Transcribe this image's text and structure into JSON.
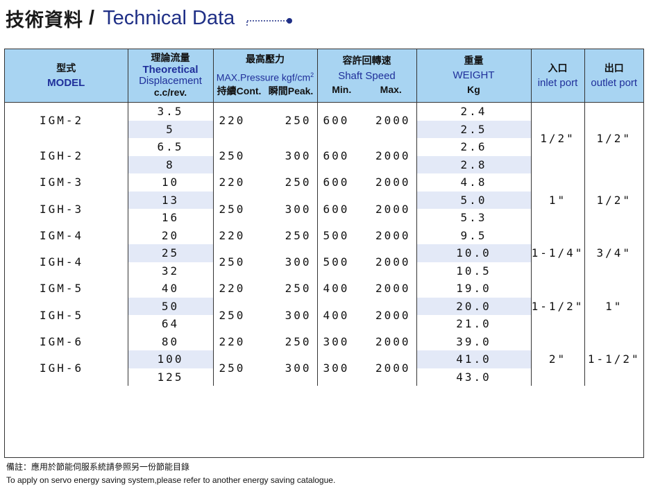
{
  "heading": {
    "zh": "技術資料",
    "slash": "/",
    "en": "Technical Data"
  },
  "headers": {
    "model_zh": "型式",
    "model_en": "MODEL",
    "disp_zh": "理論流量",
    "disp_en1": "Theoretical",
    "disp_en2": "Displacement",
    "disp_unit": "c.c/rev.",
    "press_zh": "最高壓力",
    "press_en": "MAX.Pressure kgf/cm",
    "press_sup": "2",
    "press_cont": "持續Cont.",
    "press_peak": "瞬間Peak.",
    "speed_zh": "容許回轉速",
    "speed_en": "Shaft Speed",
    "speed_min": "Min.",
    "speed_max": "Max.",
    "weight_zh": "重量",
    "weight_en": "WEIGHT",
    "weight_unit": "Kg",
    "inlet_zh": "入口",
    "inlet_en": "inlet port",
    "outlet_zh": "出口",
    "outlet_en": "outlet port"
  },
  "groups": [
    {
      "models": [
        {
          "name": "IGM-2",
          "cont": "220",
          "peak": "250",
          "min": "600",
          "max": "2000"
        },
        {
          "name": "IGH-2",
          "cont": "250",
          "peak": "300",
          "min": "600",
          "max": "2000"
        }
      ],
      "disp": [
        "3.5",
        "5",
        "6.5",
        "8"
      ],
      "weight": [
        "2.4",
        "2.5",
        "2.6",
        "2.8"
      ],
      "inlet": "1/2\"",
      "outlet": "1/2\""
    },
    {
      "models": [
        {
          "name": "IGM-3",
          "cont": "220",
          "peak": "250",
          "min": "600",
          "max": "2000"
        },
        {
          "name": "IGH-3",
          "cont": "250",
          "peak": "300",
          "min": "600",
          "max": "2000"
        }
      ],
      "disp": [
        "10",
        "13",
        "16"
      ],
      "weight": [
        "4.8",
        "5.0",
        "5.3"
      ],
      "inlet": "1\"",
      "outlet": "1/2\""
    },
    {
      "models": [
        {
          "name": "IGM-4",
          "cont": "220",
          "peak": "250",
          "min": "500",
          "max": "2000"
        },
        {
          "name": "IGH-4",
          "cont": "250",
          "peak": "300",
          "min": "500",
          "max": "2000"
        }
      ],
      "disp": [
        "20",
        "25",
        "32"
      ],
      "weight": [
        "9.5",
        "10.0",
        "10.5"
      ],
      "inlet": "1-1/4\"",
      "outlet": "3/4\""
    },
    {
      "models": [
        {
          "name": "IGM-5",
          "cont": "220",
          "peak": "250",
          "min": "400",
          "max": "2000"
        },
        {
          "name": "IGH-5",
          "cont": "250",
          "peak": "300",
          "min": "400",
          "max": "2000"
        }
      ],
      "disp": [
        "40",
        "50",
        "64"
      ],
      "weight": [
        "19.0",
        "20.0",
        "21.0"
      ],
      "inlet": "1-1/2\"",
      "outlet": "1\""
    },
    {
      "models": [
        {
          "name": "IGM-6",
          "cont": "220",
          "peak": "250",
          "min": "300",
          "max": "2000"
        },
        {
          "name": "IGH-6",
          "cont": "250",
          "peak": "300",
          "min": "300",
          "max": "2000"
        }
      ],
      "disp": [
        "80",
        "100",
        "125"
      ],
      "weight": [
        "39.0",
        "41.0",
        "43.0"
      ],
      "inlet": "2\"",
      "outlet": "1-1/2\""
    }
  ],
  "notes": {
    "zh": "備註：應用於節能伺服系統請參照另一份節能目錄",
    "en": "To apply on servo energy saving system,please refer to another energy saving catalogue."
  },
  "colors": {
    "header_bg": "#a8d4f2",
    "shade": "#e3e9f7",
    "accent": "#1f2f86"
  }
}
